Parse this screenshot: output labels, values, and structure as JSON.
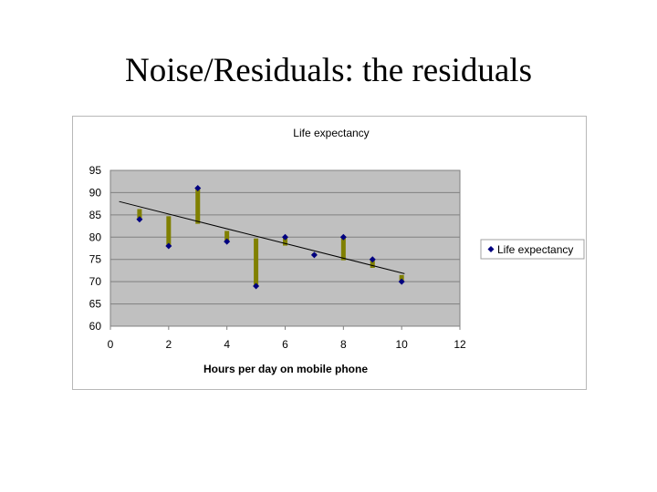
{
  "slide": {
    "title": "Noise/Residuals: the residuals"
  },
  "chart_data": {
    "type": "scatter",
    "title": "Life expectancy",
    "xlabel": "Hours per day on mobile phone",
    "ylabel": "",
    "xlim": [
      0,
      12
    ],
    "ylim": [
      60,
      95
    ],
    "x_ticks": [
      "0",
      "2",
      "4",
      "6",
      "8",
      "10",
      "12"
    ],
    "y_ticks": [
      "60",
      "65",
      "70",
      "75",
      "80",
      "85",
      "90",
      "95"
    ],
    "grid": true,
    "legend_position": "right",
    "series": [
      {
        "name": "Life expectancy",
        "color": "#000080",
        "marker": "diamond",
        "x": [
          1,
          2,
          3,
          4,
          5,
          6,
          7,
          8,
          9,
          10
        ],
        "y": [
          84,
          78,
          91,
          79,
          69,
          80,
          76,
          80,
          75,
          70
        ]
      }
    ],
    "trendline": {
      "type": "linear",
      "color": "#000000",
      "x": [
        0.3,
        10.1
      ],
      "y": [
        88,
        71.8
      ]
    },
    "residuals": {
      "color": "#808000",
      "fitted_y": [
        86.3,
        84.7,
        83.0,
        81.4,
        79.7,
        78.1,
        76.4,
        74.8,
        73.1,
        71.5
      ]
    },
    "plot_area_color": "#c0c0c0",
    "gridline_color": "#808080"
  }
}
